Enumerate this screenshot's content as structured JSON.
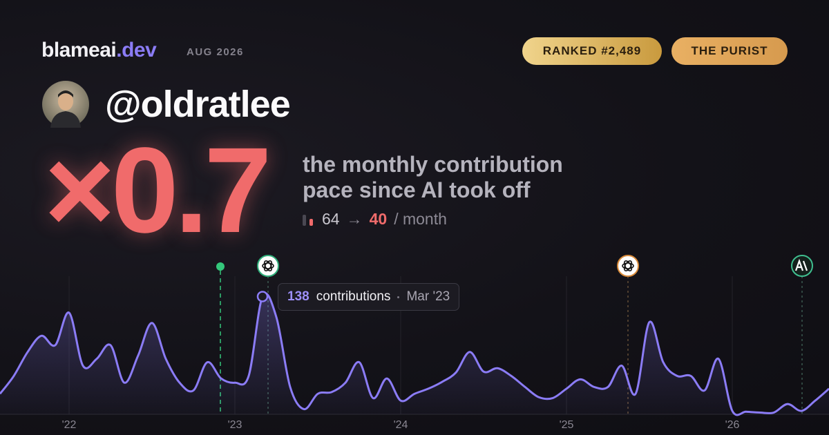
{
  "header": {
    "brand": "blameai",
    "brand_suffix": ".dev",
    "period": "AUG 2026"
  },
  "badges": [
    "RANKED #2,489",
    "THE PURIST"
  ],
  "username": "@oldratlee",
  "multiplier": "×0.7",
  "tagline": [
    "the monthly contribution",
    "pace since AI took off"
  ],
  "pace": {
    "before": 64,
    "arrow": "→",
    "after": 40,
    "unit": "/ month"
  },
  "chart_data": {
    "type": "line",
    "categories": [
      null,
      null,
      null,
      null,
      null,
      "'22",
      null,
      null,
      null,
      null,
      null,
      null,
      null,
      null,
      null,
      null,
      null,
      "'23",
      null,
      null,
      null,
      null,
      null,
      null,
      null,
      null,
      null,
      null,
      null,
      "'24",
      null,
      null,
      null,
      null,
      null,
      null,
      null,
      null,
      null,
      null,
      null,
      "'25",
      null,
      null,
      null,
      null,
      null,
      null,
      null,
      null,
      null,
      null,
      null,
      "'26",
      null,
      null,
      null,
      null,
      null,
      null,
      null
    ],
    "values": [
      24,
      45,
      73,
      92,
      81,
      119,
      57,
      65,
      81,
      37,
      69,
      107,
      65,
      37,
      28,
      61,
      42,
      37,
      45,
      138,
      114,
      32,
      6,
      24,
      26,
      37,
      61,
      19,
      42,
      16,
      24,
      30,
      38,
      49,
      73,
      50,
      54,
      45,
      32,
      20,
      19,
      30,
      41,
      32,
      32,
      57,
      24,
      108,
      61,
      45,
      45,
      28,
      65,
      4,
      3,
      2,
      2,
      12,
      4,
      16,
      30
    ],
    "color": "#8b7cf6",
    "ylim": [
      0,
      140
    ],
    "grid": true,
    "tooltip": {
      "label": "contributions",
      "date": "Mar '23"
    }
  }
}
